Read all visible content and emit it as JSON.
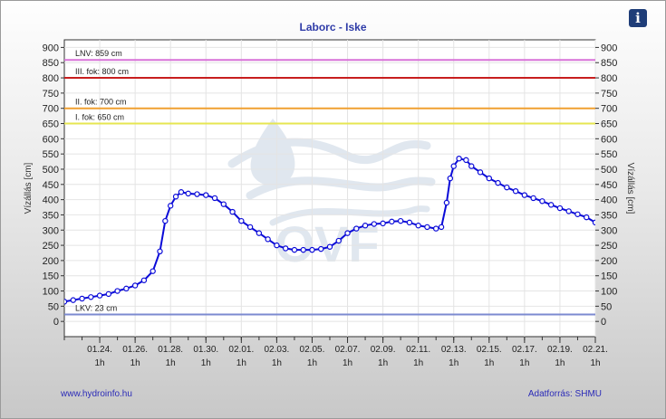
{
  "title": "Laborc - Iske",
  "info_icon": "i",
  "footer": {
    "website": "www.hydroinfo.hu",
    "source": "Adatforrás: SHMU"
  },
  "colors": {
    "lnv": "#d872d8",
    "fok3": "#c81e1e",
    "fok2": "#f0a030",
    "fok1": "#e6e650",
    "lkv": "#7c8ad0",
    "series": "#0a0ad8"
  },
  "chart_data": {
    "type": "line",
    "title": "Laborc - Iske",
    "ylabel_left": "Vízállás [cm]",
    "ylabel_right": "Vízállás [cm]",
    "ylim": [
      -50,
      925
    ],
    "yticks": [
      0,
      50,
      100,
      150,
      200,
      250,
      300,
      350,
      400,
      450,
      500,
      550,
      600,
      650,
      700,
      750,
      800,
      850,
      900
    ],
    "xlim": [
      0,
      30
    ],
    "xticks": [
      {
        "x": 2,
        "date": "01.24.",
        "hour": "1h"
      },
      {
        "x": 4,
        "date": "01.26.",
        "hour": "1h"
      },
      {
        "x": 6,
        "date": "01.28.",
        "hour": "1h"
      },
      {
        "x": 8,
        "date": "01.30.",
        "hour": "1h"
      },
      {
        "x": 10,
        "date": "02.01.",
        "hour": "1h"
      },
      {
        "x": 12,
        "date": "02.03.",
        "hour": "1h"
      },
      {
        "x": 14,
        "date": "02.05.",
        "hour": "1h"
      },
      {
        "x": 16,
        "date": "02.07.",
        "hour": "1h"
      },
      {
        "x": 18,
        "date": "02.09.",
        "hour": "1h"
      },
      {
        "x": 20,
        "date": "02.11.",
        "hour": "1h"
      },
      {
        "x": 22,
        "date": "02.13.",
        "hour": "1h"
      },
      {
        "x": 24,
        "date": "02.15.",
        "hour": "1h"
      },
      {
        "x": 26,
        "date": "02.17.",
        "hour": "1h"
      },
      {
        "x": 28,
        "date": "02.19.",
        "hour": "1h"
      },
      {
        "x": 30,
        "date": "02.21.",
        "hour": "1h"
      }
    ],
    "reference_lines": [
      {
        "label": "LNV: 859 cm",
        "value": 859,
        "color": "#d872d8"
      },
      {
        "label": "III. fok: 800 cm",
        "value": 800,
        "color": "#c81e1e"
      },
      {
        "label": "II. fok: 700 cm",
        "value": 700,
        "color": "#f0a030"
      },
      {
        "label": "I. fok: 650 cm",
        "value": 650,
        "color": "#e6e650"
      },
      {
        "label": "LKV: 23 cm",
        "value": 23,
        "color": "#7c8ad0"
      }
    ],
    "series": [
      {
        "x": [
          0,
          0.5,
          1,
          1.5,
          2,
          2.5,
          3,
          3.5,
          4,
          4.5,
          5,
          5.4,
          5.7,
          6,
          6.3,
          6.6,
          7,
          7.5,
          8,
          8.5,
          9,
          9.5,
          10,
          10.5,
          11,
          11.5,
          12,
          12.5,
          13,
          13.5,
          14,
          14.5,
          15,
          15.5,
          16,
          16.5,
          17,
          17.5,
          18,
          18.5,
          19,
          19.5,
          20,
          20.5,
          21,
          21.3,
          21.6,
          21.8,
          22,
          22.3,
          22.7,
          23,
          23.5,
          24,
          24.5,
          25,
          25.5,
          26,
          26.5,
          27,
          27.5,
          28,
          28.5,
          29,
          29.5,
          30
        ],
        "y": [
          65,
          70,
          75,
          80,
          85,
          90,
          100,
          108,
          118,
          135,
          165,
          230,
          330,
          380,
          410,
          425,
          420,
          418,
          415,
          405,
          385,
          360,
          330,
          310,
          290,
          270,
          250,
          240,
          235,
          235,
          235,
          238,
          245,
          265,
          290,
          305,
          315,
          320,
          322,
          328,
          330,
          325,
          315,
          310,
          305,
          310,
          390,
          470,
          510,
          535,
          530,
          510,
          490,
          470,
          455,
          440,
          428,
          415,
          405,
          395,
          383,
          372,
          362,
          352,
          342,
          325
        ]
      }
    ]
  }
}
